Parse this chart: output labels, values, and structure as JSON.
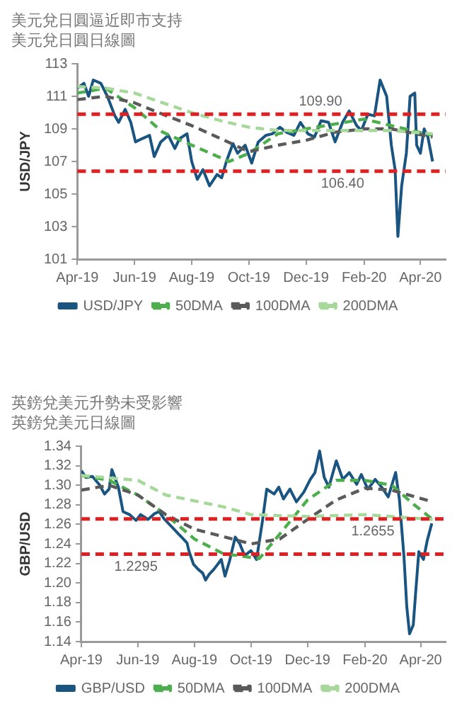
{
  "chart_data": [
    {
      "type": "line",
      "title": "美元兌日圓逼近即市支持",
      "subtitle": "美元兌日圓日線圖",
      "ylabel": "USD/JPY",
      "xlim": [
        "2019-04-01",
        "2020-04-28"
      ],
      "xticks": [
        {
          "value": "2019-04-01",
          "label": "Apr-19"
        },
        {
          "value": "2019-06-01",
          "label": "Jun-19"
        },
        {
          "value": "2019-08-01",
          "label": "Aug-19"
        },
        {
          "value": "2019-10-01",
          "label": "Oct-19"
        },
        {
          "value": "2019-12-01",
          "label": "Dec-19"
        },
        {
          "value": "2020-02-01",
          "label": "Feb-20"
        },
        {
          "value": "2020-04-01",
          "label": "Apr-20"
        }
      ],
      "ylim": [
        101,
        113
      ],
      "yticks": [
        101,
        103,
        105,
        107,
        109,
        111,
        113
      ],
      "grid": false,
      "legend": "bottom",
      "ref_lines": [
        {
          "axis": "y",
          "value": 109.9,
          "label": "109.90",
          "color": "#e02020",
          "line_style": "dashed"
        },
        {
          "axis": "y",
          "value": 106.4,
          "label": "106.40",
          "color": "#e02020",
          "line_style": "dashed"
        }
      ],
      "series": [
        {
          "name": "200DMA",
          "color": "#a6d89a",
          "line_style": "dashed",
          "x": [
            "2019-04-01",
            "2019-05-01",
            "2019-06-01",
            "2019-07-01",
            "2019-08-01",
            "2019-09-01",
            "2019-10-01",
            "2019-11-01",
            "2019-12-01",
            "2020-01-01",
            "2020-02-01",
            "2020-03-01",
            "2020-04-14"
          ],
          "values": [
            111.6,
            111.5,
            111.2,
            110.6,
            110.0,
            109.5,
            109.1,
            108.9,
            108.9,
            108.9,
            108.9,
            108.9,
            108.7
          ]
        },
        {
          "name": "100DMA",
          "color": "#5a5a5a",
          "line_style": "dashed",
          "x": [
            "2019-04-01",
            "2019-05-01",
            "2019-06-01",
            "2019-07-01",
            "2019-08-01",
            "2019-09-01",
            "2019-10-01",
            "2019-11-01",
            "2019-12-01",
            "2020-01-01",
            "2020-02-01",
            "2020-03-01",
            "2020-04-14"
          ],
          "values": [
            110.8,
            111.0,
            110.6,
            109.9,
            109.2,
            108.4,
            107.6,
            108.0,
            108.3,
            108.8,
            109.0,
            109.0,
            108.5
          ]
        },
        {
          "name": "50DMA",
          "color": "#4cae4c",
          "line_style": "dashed",
          "x": [
            "2019-04-01",
            "2019-05-01",
            "2019-06-01",
            "2019-07-01",
            "2019-08-01",
            "2019-09-10",
            "2019-10-01",
            "2019-11-01",
            "2019-12-01",
            "2020-01-01",
            "2020-02-01",
            "2020-03-01",
            "2020-04-14"
          ],
          "values": [
            111.2,
            111.5,
            110.3,
            108.8,
            108.0,
            107.0,
            107.5,
            108.7,
            109.0,
            109.3,
            109.6,
            109.2,
            108.6
          ]
        },
        {
          "name": "USD/JPY",
          "color": "#1a5480",
          "line_style": "solid",
          "x": [
            "2019-04-01",
            "2019-04-08",
            "2019-04-13",
            "2019-04-18",
            "2019-04-26",
            "2019-05-03",
            "2019-05-11",
            "2019-05-15",
            "2019-05-22",
            "2019-05-28",
            "2019-06-02",
            "2019-06-09",
            "2019-06-17",
            "2019-06-22",
            "2019-06-29",
            "2019-07-07",
            "2019-07-14",
            "2019-07-19",
            "2019-07-27",
            "2019-08-01",
            "2019-08-07",
            "2019-08-13",
            "2019-08-20",
            "2019-08-28",
            "2019-09-02",
            "2019-09-07",
            "2019-09-14",
            "2019-09-19",
            "2019-09-27",
            "2019-10-04",
            "2019-10-11",
            "2019-10-19",
            "2019-10-26",
            "2019-11-03",
            "2019-11-10",
            "2019-11-18",
            "2019-11-25",
            "2019-12-03",
            "2019-12-10",
            "2019-12-17",
            "2019-12-25",
            "2020-01-01",
            "2020-01-09",
            "2020-01-16",
            "2020-01-24",
            "2020-01-29",
            "2020-02-05",
            "2020-02-12",
            "2020-02-18",
            "2020-02-25",
            "2020-03-01",
            "2020-03-05",
            "2020-03-08",
            "2020-03-12",
            "2020-03-17",
            "2020-03-21",
            "2020-03-26",
            "2020-03-28",
            "2020-04-01",
            "2020-04-05",
            "2020-04-09",
            "2020-04-14"
          ],
          "values": [
            111.5,
            111.8,
            111.0,
            112.0,
            111.8,
            111.0,
            109.8,
            109.4,
            110.2,
            109.4,
            108.2,
            108.4,
            108.6,
            107.3,
            108.2,
            108.6,
            107.8,
            108.4,
            108.7,
            107.0,
            105.9,
            106.5,
            105.5,
            106.2,
            106.0,
            107.0,
            108.1,
            107.5,
            108.0,
            106.9,
            108.2,
            108.6,
            108.7,
            109.1,
            108.8,
            108.6,
            109.4,
            108.7,
            108.5,
            109.5,
            109.4,
            108.2,
            109.4,
            110.1,
            109.2,
            108.9,
            109.9,
            109.8,
            112.0,
            111.0,
            108.0,
            106.5,
            102.4,
            105.5,
            107.5,
            111.0,
            111.2,
            108.0,
            107.5,
            109.0,
            108.5,
            107.0
          ]
        }
      ]
    },
    {
      "type": "line",
      "title": "英鎊兌美元升勢未受影響",
      "subtitle": "英鎊兌美元日線圖",
      "ylabel": "GBP/USD",
      "xlim": [
        "2019-04-01",
        "2020-04-28"
      ],
      "xticks": [
        {
          "value": "2019-04-01",
          "label": "Apr-19"
        },
        {
          "value": "2019-06-01",
          "label": "Jun-19"
        },
        {
          "value": "2019-08-01",
          "label": "Aug-19"
        },
        {
          "value": "2019-10-01",
          "label": "Oct-19"
        },
        {
          "value": "2019-12-01",
          "label": "Dec-19"
        },
        {
          "value": "2020-02-01",
          "label": "Feb-20"
        },
        {
          "value": "2020-04-01",
          "label": "Apr-20"
        }
      ],
      "ylim": [
        1.14,
        1.34
      ],
      "yticks": [
        1.14,
        1.16,
        1.18,
        {
          "value": 1.2,
          "label": "1.20"
        },
        1.22,
        1.24,
        1.26,
        1.28,
        {
          "value": 1.3,
          "label": "1.30"
        },
        1.32,
        1.34
      ],
      "grid": false,
      "legend": "bottom",
      "ref_lines": [
        {
          "axis": "y",
          "value": 1.2655,
          "label": "1.2655",
          "color": "#e02020",
          "line_style": "dashed"
        },
        {
          "axis": "y",
          "value": 1.2295,
          "label": "1.2295",
          "color": "#e02020",
          "line_style": "dashed"
        }
      ],
      "series": [
        {
          "name": "200DMA",
          "color": "#a6d89a",
          "line_style": "dashed",
          "x": [
            "2019-04-01",
            "2019-06-01",
            "2019-07-01",
            "2019-09-01",
            "2019-10-01",
            "2019-12-01",
            "2020-02-01",
            "2020-04-14"
          ],
          "values": [
            1.31,
            1.305,
            1.29,
            1.278,
            1.27,
            1.268,
            1.27,
            1.265
          ]
        },
        {
          "name": "100DMA",
          "color": "#5a5a5a",
          "line_style": "dashed",
          "x": [
            "2019-04-01",
            "2019-05-01",
            "2019-06-01",
            "2019-07-01",
            "2019-08-01",
            "2019-10-01",
            "2019-11-01",
            "2019-12-01",
            "2020-01-01",
            "2020-02-01",
            "2020-03-01",
            "2020-04-14"
          ],
          "values": [
            1.295,
            1.3,
            1.29,
            1.27,
            1.255,
            1.24,
            1.245,
            1.265,
            1.285,
            1.297,
            1.295,
            1.283
          ]
        },
        {
          "name": "50DMA",
          "color": "#4cae4c",
          "line_style": "dashed",
          "x": [
            "2019-04-01",
            "2019-05-01",
            "2019-06-01",
            "2019-07-01",
            "2019-08-01",
            "2019-09-01",
            "2019-10-10",
            "2019-11-01",
            "2019-12-01",
            "2020-01-01",
            "2020-02-01",
            "2020-03-01",
            "2020-03-25",
            "2020-04-14"
          ],
          "values": [
            1.31,
            1.305,
            1.29,
            1.27,
            1.245,
            1.23,
            1.225,
            1.25,
            1.285,
            1.305,
            1.305,
            1.3,
            1.28,
            1.265
          ]
        },
        {
          "name": "GBP/USD",
          "color": "#1a5480",
          "line_style": "solid",
          "x": [
            "2019-04-01",
            "2019-04-06",
            "2019-04-13",
            "2019-04-21",
            "2019-04-26",
            "2019-05-01",
            "2019-05-04",
            "2019-05-11",
            "2019-05-16",
            "2019-05-23",
            "2019-05-30",
            "2019-06-04",
            "2019-06-12",
            "2019-06-19",
            "2019-06-24",
            "2019-06-29",
            "2019-07-04",
            "2019-07-09",
            "2019-07-14",
            "2019-07-19",
            "2019-07-24",
            "2019-07-26",
            "2019-07-31",
            "2019-08-05",
            "2019-08-10",
            "2019-08-13",
            "2019-08-17",
            "2019-08-22",
            "2019-08-30",
            "2019-09-03",
            "2019-09-08",
            "2019-09-14",
            "2019-09-19",
            "2019-09-24",
            "2019-10-01",
            "2019-10-07",
            "2019-10-13",
            "2019-10-18",
            "2019-10-26",
            "2019-10-31",
            "2019-11-05",
            "2019-11-12",
            "2019-11-19",
            "2019-11-27",
            "2019-12-04",
            "2019-12-09",
            "2019-12-14",
            "2019-12-19",
            "2019-12-24",
            "2020-01-01",
            "2020-01-08",
            "2020-01-15",
            "2020-01-23",
            "2020-01-28",
            "2020-02-04",
            "2020-02-12",
            "2020-02-19",
            "2020-02-26",
            "2020-03-05",
            "2020-03-09",
            "2020-03-14",
            "2020-03-17",
            "2020-03-20",
            "2020-03-24",
            "2020-03-27",
            "2020-03-30",
            "2020-04-04",
            "2020-04-08",
            "2020-04-13"
          ],
          "values": [
            1.315,
            1.308,
            1.309,
            1.3,
            1.291,
            1.296,
            1.316,
            1.298,
            1.273,
            1.27,
            1.264,
            1.27,
            1.265,
            1.271,
            1.273,
            1.266,
            1.261,
            1.256,
            1.251,
            1.246,
            1.241,
            1.233,
            1.219,
            1.214,
            1.21,
            1.203,
            1.209,
            1.214,
            1.224,
            1.207,
            1.223,
            1.247,
            1.24,
            1.228,
            1.233,
            1.224,
            1.261,
            1.296,
            1.291,
            1.298,
            1.286,
            1.296,
            1.283,
            1.293,
            1.306,
            1.313,
            1.335,
            1.308,
            1.298,
            1.325,
            1.306,
            1.313,
            1.301,
            1.311,
            1.296,
            1.306,
            1.298,
            1.288,
            1.313,
            1.286,
            1.227,
            1.176,
            1.148,
            1.157,
            1.195,
            1.232,
            1.224,
            1.243,
            1.261
          ]
        }
      ]
    }
  ]
}
